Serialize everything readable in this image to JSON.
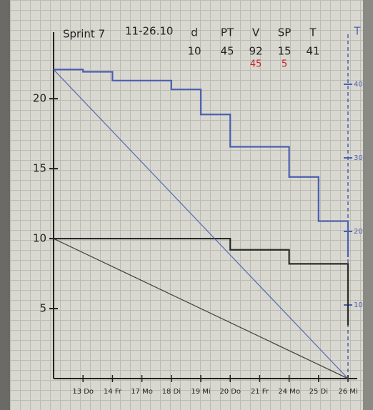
{
  "chart_data": {
    "type": "step",
    "title": "Sprint 7",
    "subtitle": "11-26.10",
    "stats": [
      {
        "label": "d",
        "value": "10"
      },
      {
        "label": "PT",
        "value": "45"
      },
      {
        "label": "V",
        "value": "92",
        "correction": "45"
      },
      {
        "label": "SP",
        "value": "15",
        "correction": "5"
      },
      {
        "label": "T",
        "value": "41"
      }
    ],
    "y2_label": "T",
    "categories": [
      null,
      "13 Do",
      "14 Fr",
      "17 Mo",
      "18 Di",
      "19 Mi",
      "20 Do",
      "21 Fr",
      "24 Mo",
      "25 Di",
      "26 Mi"
    ],
    "series": [
      {
        "color": "#2b2b2b",
        "values": [
          10,
          10,
          10,
          10,
          10,
          10,
          9.2,
          9.2,
          8.2,
          8.2,
          3.8
        ],
        "ideal_end": 0
      },
      {
        "color": "#4a5fb0",
        "axis": "y2",
        "values": [
          42,
          41.7,
          40.5,
          40.5,
          39.3,
          35.9,
          31.5,
          31.5,
          27.4,
          21.4,
          16.5
        ],
        "ideal_end": 0
      }
    ],
    "ylim": [
      0,
      24.5
    ],
    "yticks": [
      5,
      10,
      15,
      20
    ],
    "y2lim": [
      0,
      46.6
    ],
    "y2ticks": [
      10,
      20,
      30,
      40
    ]
  }
}
